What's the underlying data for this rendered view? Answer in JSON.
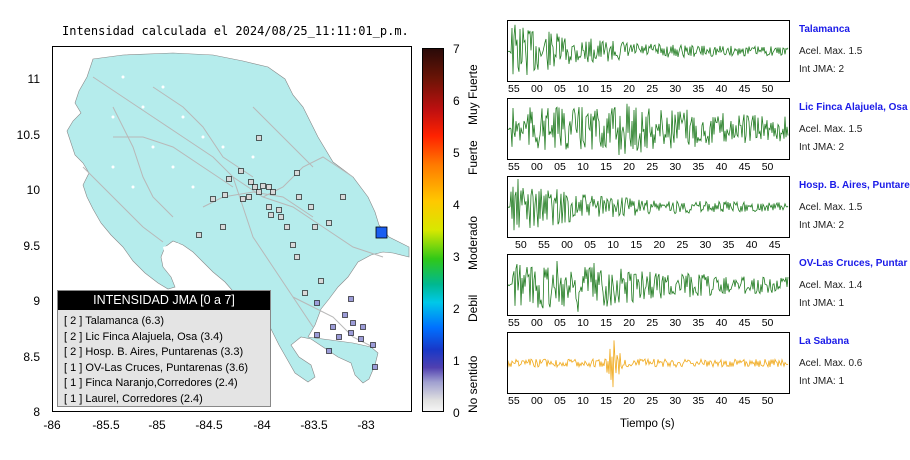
{
  "map": {
    "title": "Intensidad calculada el 2024/08/25_11:11:01_p.m.",
    "y_ticks": [
      "11",
      "10.5",
      "10",
      "9.5",
      "9",
      "8.5",
      "8"
    ],
    "x_ticks": [
      "-86",
      "-85.5",
      "-85",
      "-84.5",
      "-84",
      "-83.5",
      "-83"
    ],
    "land_color": "#b5ecec",
    "epicenter_color": "#1a5ef0"
  },
  "colorbar": {
    "ticks": [
      "7",
      "6",
      "5",
      "4",
      "3",
      "2",
      "1",
      "0"
    ],
    "categories": [
      "Muy Fuerte",
      "Fuerte",
      "Moderado",
      "Debil",
      "No sentido"
    ]
  },
  "legend": {
    "header": "INTENSIDAD JMA [0 a 7]",
    "items": [
      "[ 2 ] Talamanca (6.3)",
      "[ 2 ] Lic Finca Alajuela, Osa (3.4)",
      "[ 2 ] Hosp. B. Aires, Puntarenas (3.3)",
      "[ 1 ] OV-Las Cruces, Puntarenas (3.6)",
      "[ 1 ] Finca Naranjo,Corredores (2.4)",
      "[ 1 ] Laurel, Corredores (2.4)"
    ]
  },
  "traces": [
    {
      "name": "Talamanca",
      "accel": "Acel. Max. 1.5",
      "jma": "Int JMA: 2",
      "color": "#1e7a1e",
      "ticks": [
        "55",
        "00",
        "05",
        "10",
        "15",
        "20",
        "25",
        "30",
        "35",
        "40",
        "45",
        "50"
      ]
    },
    {
      "name": "Lic Finca Alajuela, Osa",
      "accel": "Acel. Max. 1.5",
      "jma": "Int JMA: 2",
      "color": "#1e7a1e",
      "ticks": [
        "55",
        "00",
        "05",
        "10",
        "15",
        "20",
        "25",
        "30",
        "35",
        "40",
        "45",
        "50"
      ]
    },
    {
      "name": "Hosp. B. Aires, Puntare",
      "accel": "Acel. Max. 1.5",
      "jma": "Int JMA: 2",
      "color": "#1e7a1e",
      "ticks": [
        "50",
        "55",
        "00",
        "05",
        "10",
        "15",
        "20",
        "25",
        "30",
        "35",
        "40",
        "45"
      ]
    },
    {
      "name": "OV-Las Cruces, Puntar",
      "accel": "Acel. Max. 1.4",
      "jma": "Int JMA: 1",
      "color": "#1e7a1e",
      "ticks": [
        "55",
        "00",
        "05",
        "10",
        "15",
        "20",
        "25",
        "30",
        "35",
        "40",
        "45",
        "50"
      ]
    },
    {
      "name": "La Sabana",
      "accel": "Acel. Max. 0.6",
      "jma": "Int JMA: 1",
      "color": "#f0a818",
      "ticks": [
        "55",
        "00",
        "05",
        "10",
        "15",
        "20",
        "25",
        "30",
        "35",
        "40",
        "45",
        "50"
      ]
    }
  ],
  "x_axis_label": "Tiempo (s)"
}
